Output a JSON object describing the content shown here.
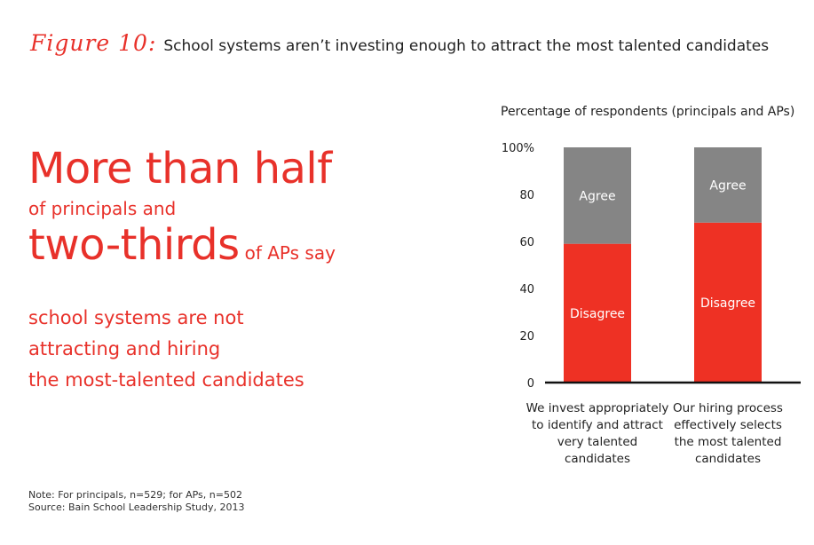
{
  "figure": {
    "label": "Figure 10:",
    "title": "School systems aren’t investing enough to attract the most talented candidates"
  },
  "headline": {
    "line1": "More than half",
    "line2": "of principals and",
    "line3_big": "two-thirds",
    "line3_small": "of APs say",
    "rest": [
      "school systems are not",
      "attracting and hiring",
      "the most-talented candidates"
    ]
  },
  "chart_data": {
    "type": "bar",
    "stacked": true,
    "title": "Percentage of respondents (principals and APs)",
    "categories": [
      [
        "We invest appropriately",
        "to identify and attract",
        "very talented",
        "candidates"
      ],
      [
        "Our hiring process",
        "effectively selects",
        "the most talented",
        "candidates"
      ]
    ],
    "series": [
      {
        "name": "Disagree",
        "values": [
          59,
          68
        ],
        "color": "#ee3124"
      },
      {
        "name": "Agree",
        "values": [
          41,
          32
        ],
        "color": "#858585"
      }
    ],
    "yticks": [
      "0",
      "20",
      "40",
      "60",
      "80",
      "100%"
    ],
    "ylim": [
      0,
      100
    ],
    "grid": false,
    "legend": "labels-inside-bars"
  },
  "notes": [
    "Note: For principals, n=529; for APs, n=502",
    "Source: Bain School Leadership Study, 2013"
  ]
}
